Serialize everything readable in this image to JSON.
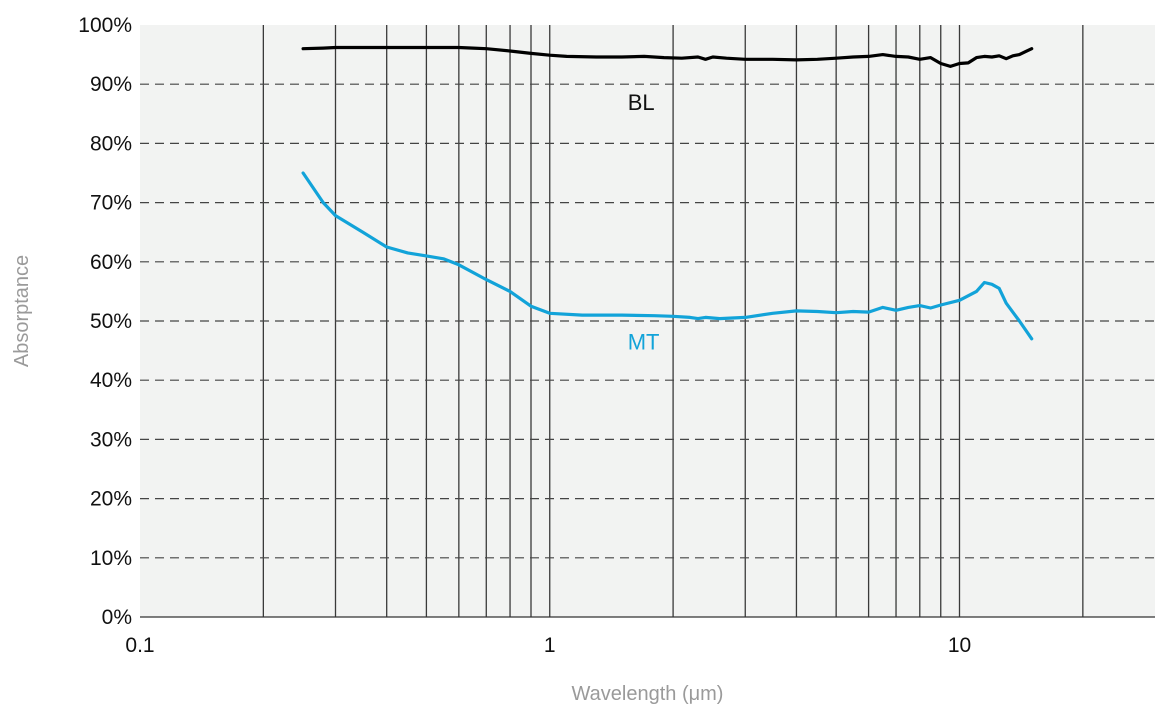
{
  "chart_data": {
    "type": "line",
    "xlabel": "Wavelength (μm)",
    "ylabel": "Absorptance",
    "x_scale": "log",
    "xlim": [
      0.1,
      30
    ],
    "ylim": [
      0,
      100
    ],
    "x_ticks": [
      {
        "value": 0.1,
        "label": "0.1"
      },
      {
        "value": 1,
        "label": "1"
      },
      {
        "value": 10,
        "label": "10"
      }
    ],
    "x_grid": [
      0.2,
      0.3,
      0.4,
      0.5,
      0.6,
      0.7,
      0.8,
      0.9,
      1,
      2,
      3,
      4,
      5,
      6,
      7,
      8,
      9,
      10,
      20
    ],
    "y_ticks": [
      {
        "value": 0,
        "label": "0%"
      },
      {
        "value": 10,
        "label": "10%"
      },
      {
        "value": 20,
        "label": "20%"
      },
      {
        "value": 30,
        "label": "30%"
      },
      {
        "value": 40,
        "label": "40%"
      },
      {
        "value": 50,
        "label": "50%"
      },
      {
        "value": 60,
        "label": "60%"
      },
      {
        "value": 70,
        "label": "70%"
      },
      {
        "value": 80,
        "label": "80%"
      },
      {
        "value": 90,
        "label": "90%"
      },
      {
        "value": 100,
        "label": "100%"
      }
    ],
    "grid": true,
    "background_color": "#f2f3f2",
    "series": [
      {
        "name": "BL",
        "color": "#000000",
        "x": [
          0.25,
          0.28,
          0.3,
          0.35,
          0.4,
          0.45,
          0.5,
          0.55,
          0.6,
          0.65,
          0.7,
          0.8,
          0.9,
          1.0,
          1.1,
          1.3,
          1.5,
          1.7,
          1.9,
          2.1,
          2.3,
          2.4,
          2.5,
          2.7,
          3.0,
          3.5,
          4.0,
          4.5,
          5.0,
          5.5,
          6.0,
          6.5,
          7.0,
          7.5,
          8.0,
          8.5,
          9.0,
          9.5,
          10.0,
          10.5,
          11.0,
          11.5,
          12.0,
          12.5,
          13.0,
          13.5,
          14.0,
          14.5,
          15.0
        ],
        "y": [
          96.0,
          96.1,
          96.2,
          96.2,
          96.2,
          96.2,
          96.2,
          96.2,
          96.2,
          96.1,
          96.0,
          95.6,
          95.2,
          94.9,
          94.7,
          94.6,
          94.6,
          94.7,
          94.5,
          94.4,
          94.6,
          94.2,
          94.6,
          94.4,
          94.2,
          94.2,
          94.1,
          94.2,
          94.4,
          94.6,
          94.7,
          95.0,
          94.7,
          94.6,
          94.2,
          94.5,
          93.5,
          93.0,
          93.5,
          93.6,
          94.5,
          94.7,
          94.6,
          94.8,
          94.3,
          94.8,
          95.0,
          95.5,
          96.0
        ]
      },
      {
        "name": "MT",
        "color": "#12a3d9",
        "x": [
          0.25,
          0.28,
          0.3,
          0.35,
          0.4,
          0.45,
          0.5,
          0.55,
          0.6,
          0.7,
          0.8,
          0.9,
          1.0,
          1.2,
          1.5,
          1.8,
          2.0,
          2.2,
          2.3,
          2.4,
          2.6,
          3.0,
          3.5,
          4.0,
          4.5,
          5.0,
          5.5,
          6.0,
          6.5,
          7.0,
          7.5,
          8.0,
          8.5,
          9.0,
          10.0,
          11.0,
          11.5,
          12.0,
          12.5,
          13.0,
          14.0,
          15.0
        ],
        "y": [
          75.0,
          70.0,
          67.8,
          65.0,
          62.5,
          61.5,
          61.0,
          60.5,
          59.5,
          57.0,
          55.0,
          52.5,
          51.3,
          51.0,
          51.0,
          50.9,
          50.8,
          50.6,
          50.4,
          50.6,
          50.4,
          50.6,
          51.3,
          51.7,
          51.6,
          51.4,
          51.6,
          51.5,
          52.3,
          51.8,
          52.3,
          52.6,
          52.2,
          52.7,
          53.5,
          55.0,
          56.5,
          56.2,
          55.5,
          53.0,
          50.0,
          47.0
        ]
      }
    ],
    "annotations": [
      {
        "text": "BL",
        "x": 1.55,
        "y": 87.0,
        "color": "#111111"
      },
      {
        "text": "MT",
        "x": 1.55,
        "y": 46.5,
        "color": "#12a3d9"
      }
    ]
  }
}
